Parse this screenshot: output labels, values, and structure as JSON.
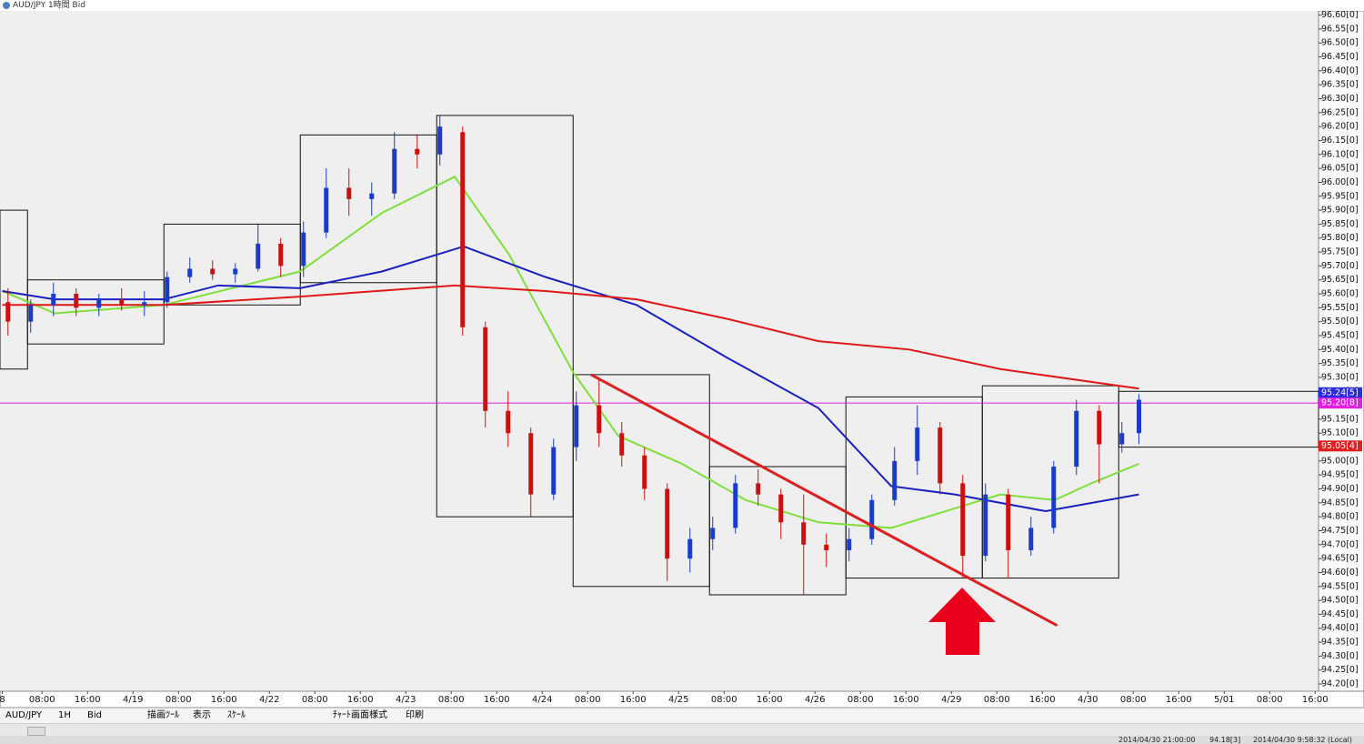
{
  "ui": {
    "window_title": "AUD/JPY 1時間 Bid",
    "toolbar": [
      "AUD/JPY",
      "1H",
      "Bid",
      "描画ﾂｰﾙ",
      "表示",
      "ｽｹｰﾙ",
      "ﾁｬｰﾄ画面様式",
      "印刷"
    ],
    "status": [
      "2014/04/30 21:00:00",
      "94.18[3]",
      "2014/04/30 9:58:32 (Local)"
    ]
  },
  "chart_data": {
    "type": "candlestick",
    "grid": false,
    "background": "#efefef",
    "xlim": [
      -7.4,
      224.6
    ],
    "ylim": [
      94.174,
      96.615
    ],
    "xticks": [
      {
        "value": -7,
        "label": "8"
      },
      {
        "value": 0,
        "label": "08:00"
      },
      {
        "value": 8,
        "label": "16:00"
      },
      {
        "value": 16,
        "label": "4/19"
      },
      {
        "value": 24,
        "label": "08:00"
      },
      {
        "value": 32,
        "label": "16:00"
      },
      {
        "value": 40,
        "label": "4/22"
      },
      {
        "value": 48,
        "label": "08:00"
      },
      {
        "value": 56,
        "label": "16:00"
      },
      {
        "value": 64,
        "label": "4/23"
      },
      {
        "value": 72,
        "label": "08:00"
      },
      {
        "value": 80,
        "label": "16:00"
      },
      {
        "value": 88,
        "label": "4/24"
      },
      {
        "value": 96,
        "label": "08:00"
      },
      {
        "value": 104,
        "label": "16:00"
      },
      {
        "value": 112,
        "label": "4/25"
      },
      {
        "value": 120,
        "label": "08:00"
      },
      {
        "value": 128,
        "label": "16:00"
      },
      {
        "value": 136,
        "label": "4/26"
      },
      {
        "value": 144,
        "label": "08:00"
      },
      {
        "value": 152,
        "label": "16:00"
      },
      {
        "value": 160,
        "label": "4/29"
      },
      {
        "value": 168,
        "label": "08:00"
      },
      {
        "value": 176,
        "label": "16:00"
      },
      {
        "value": 184,
        "label": "4/30"
      },
      {
        "value": 192,
        "label": "08:00"
      },
      {
        "value": 200,
        "label": "16:00"
      },
      {
        "value": 208,
        "label": "5/01"
      },
      {
        "value": 216,
        "label": "08:00"
      },
      {
        "value": 224,
        "label": "16:00"
      }
    ],
    "yticks": [
      {
        "value": 94.2,
        "label": "94.20[0]"
      },
      {
        "value": 94.25,
        "label": "94.25[0]"
      },
      {
        "value": 94.3,
        "label": "94.30[0]"
      },
      {
        "value": 94.35,
        "label": "94.35[0]"
      },
      {
        "value": 94.4,
        "label": "94.40[0]"
      },
      {
        "value": 94.45,
        "label": "94.45[0]"
      },
      {
        "value": 94.5,
        "label": "94.50[0]"
      },
      {
        "value": 94.55,
        "label": "94.55[0]"
      },
      {
        "value": 94.6,
        "label": "94.60[0]"
      },
      {
        "value": 94.65,
        "label": "94.65[0]"
      },
      {
        "value": 94.7,
        "label": "94.70[0]"
      },
      {
        "value": 94.75,
        "label": "94.75[0]"
      },
      {
        "value": 94.8,
        "label": "94.80[0]"
      },
      {
        "value": 94.85,
        "label": "94.85[0]"
      },
      {
        "value": 94.9,
        "label": "94.90[0]"
      },
      {
        "value": 94.95,
        "label": "94.95[0]"
      },
      {
        "value": 95.0,
        "label": "95.00[0]"
      },
      {
        "value": 95.05,
        "label": "95.05[0]"
      },
      {
        "value": 95.1,
        "label": "95.10[0]"
      },
      {
        "value": 95.15,
        "label": "95.15[0]"
      },
      {
        "value": 95.2,
        "label": "95.20[0]"
      },
      {
        "value": 95.25,
        "label": "95.25[0]"
      },
      {
        "value": 95.3,
        "label": "95.30[0]"
      },
      {
        "value": 95.35,
        "label": "95.35[0]"
      },
      {
        "value": 95.4,
        "label": "95.40[0]"
      },
      {
        "value": 95.45,
        "label": "95.45[0]"
      },
      {
        "value": 95.5,
        "label": "95.50[0]"
      },
      {
        "value": 95.55,
        "label": "95.55[0]"
      },
      {
        "value": 95.6,
        "label": "95.60[0]"
      },
      {
        "value": 95.65,
        "label": "95.65[0]"
      },
      {
        "value": 95.7,
        "label": "95.70[0]"
      },
      {
        "value": 95.75,
        "label": "95.75[0]"
      },
      {
        "value": 95.8,
        "label": "95.80[0]"
      },
      {
        "value": 95.85,
        "label": "95.85[0]"
      },
      {
        "value": 95.9,
        "label": "95.90[0]"
      },
      {
        "value": 95.95,
        "label": "95.95[0]"
      },
      {
        "value": 96.0,
        "label": "96.00[0]"
      },
      {
        "value": 96.05,
        "label": "96.05[0]"
      },
      {
        "value": 96.1,
        "label": "96.10[0]"
      },
      {
        "value": 96.15,
        "label": "96.15[0]"
      },
      {
        "value": 96.2,
        "label": "96.20[0]"
      },
      {
        "value": 96.25,
        "label": "96.25[0]"
      },
      {
        "value": 96.3,
        "label": "96.30[0]"
      },
      {
        "value": 96.35,
        "label": "96.35[0]"
      },
      {
        "value": 96.4,
        "label": "96.40[0]"
      },
      {
        "value": 96.45,
        "label": "96.45[0]"
      },
      {
        "value": 96.5,
        "label": "96.50[0]"
      },
      {
        "value": 96.55,
        "label": "96.55[0]"
      },
      {
        "value": 96.6,
        "label": "96.60[0]"
      }
    ],
    "up_color": "#1a3cc8",
    "down_color": "#cc1010",
    "candles": {
      "x": [
        -6,
        -2,
        2,
        6,
        10,
        14,
        18,
        22,
        26,
        30,
        34,
        38,
        42,
        46,
        50,
        54,
        58,
        62,
        66,
        70,
        74,
        78,
        82,
        86,
        90,
        94,
        98,
        102,
        106,
        110,
        114,
        118,
        122,
        126,
        130,
        134,
        138,
        142,
        146,
        150,
        154,
        158,
        162,
        166,
        170,
        174,
        178,
        182,
        186,
        190,
        193
      ],
      "open": [
        95.57,
        95.5,
        95.56,
        95.6,
        95.55,
        95.58,
        95.56,
        95.57,
        95.66,
        95.69,
        95.67,
        95.69,
        95.78,
        95.7,
        95.82,
        95.98,
        95.94,
        95.96,
        96.12,
        96.1,
        96.18,
        95.48,
        95.18,
        95.1,
        94.88,
        95.05,
        95.2,
        95.1,
        95.02,
        94.9,
        94.65,
        94.72,
        94.76,
        94.92,
        94.88,
        94.78,
        94.7,
        94.68,
        94.72,
        94.86,
        95.0,
        95.12,
        94.92,
        94.66,
        94.88,
        94.68,
        94.76,
        94.98,
        95.18,
        95.06,
        95.1
      ],
      "high": [
        95.62,
        95.58,
        95.64,
        95.62,
        95.6,
        95.62,
        95.61,
        95.68,
        95.73,
        95.72,
        95.71,
        95.85,
        95.8,
        95.86,
        96.05,
        96.05,
        96.0,
        96.18,
        96.17,
        96.24,
        96.2,
        95.5,
        95.25,
        95.12,
        95.08,
        95.25,
        95.3,
        95.14,
        95.05,
        94.92,
        94.76,
        94.8,
        94.95,
        94.97,
        94.9,
        94.88,
        94.74,
        94.76,
        94.88,
        95.05,
        95.2,
        95.14,
        94.95,
        94.92,
        94.9,
        94.8,
        95.0,
        95.22,
        95.2,
        95.14,
        95.24
      ],
      "low": [
        95.45,
        95.46,
        95.52,
        95.52,
        95.52,
        95.54,
        95.52,
        95.55,
        95.64,
        95.65,
        95.64,
        95.68,
        95.66,
        95.66,
        95.8,
        95.88,
        95.88,
        95.94,
        96.05,
        96.06,
        95.45,
        95.12,
        95.05,
        94.8,
        94.86,
        95.0,
        95.05,
        94.98,
        94.86,
        94.57,
        94.6,
        94.68,
        94.74,
        94.84,
        94.72,
        94.52,
        94.62,
        94.64,
        94.7,
        94.84,
        94.95,
        94.88,
        94.58,
        94.64,
        94.58,
        94.66,
        94.74,
        94.95,
        94.92,
        95.03,
        95.06
      ],
      "close": [
        95.5,
        95.56,
        95.6,
        95.55,
        95.58,
        95.56,
        95.57,
        95.66,
        95.69,
        95.67,
        95.69,
        95.78,
        95.7,
        95.82,
        95.98,
        95.94,
        95.96,
        96.12,
        96.1,
        96.2,
        95.48,
        95.18,
        95.1,
        94.88,
        95.05,
        95.2,
        95.1,
        95.02,
        94.9,
        94.65,
        94.72,
        94.76,
        94.92,
        94.88,
        94.78,
        94.7,
        94.68,
        94.72,
        94.86,
        95.0,
        95.12,
        94.92,
        94.66,
        94.88,
        94.68,
        94.76,
        94.98,
        95.18,
        95.06,
        95.1,
        95.22
      ]
    },
    "series": [
      {
        "color": "#7ee03a",
        "x": [
          -7,
          2.2,
          21.4,
          45.4,
          59.8,
          72.6,
          82.2,
          93.4,
          101.4,
          112.6,
          123.8,
          136.6,
          149.4,
          160.6,
          168.6,
          178.2,
          184.6,
          193
        ],
        "values": [
          95.61,
          95.53,
          95.56,
          95.68,
          95.89,
          96.02,
          95.74,
          95.32,
          95.09,
          94.99,
          94.86,
          94.78,
          94.76,
          94.83,
          94.88,
          94.86,
          94.92,
          94.99
        ]
      },
      {
        "color": "#1a20c0",
        "x": [
          -7,
          2.2,
          21.4,
          31,
          45.4,
          59.8,
          74.2,
          88.6,
          104.6,
          120.6,
          136.6,
          149.4,
          160.6,
          176.6,
          193
        ],
        "values": [
          95.61,
          95.58,
          95.58,
          95.63,
          95.62,
          95.68,
          95.77,
          95.66,
          95.56,
          95.37,
          95.19,
          94.91,
          94.88,
          94.82,
          94.88
        ]
      },
      {
        "color": "#e01818",
        "x": [
          -7,
          21.4,
          45.4,
          72.6,
          88.6,
          104.6,
          120.6,
          136.6,
          152.6,
          168.6,
          193
        ],
        "values": [
          95.56,
          95.56,
          95.59,
          95.63,
          95.61,
          95.58,
          95.51,
          95.43,
          95.4,
          95.33,
          95.26
        ]
      }
    ],
    "boxes": {
      "x0": [
        -7.4,
        -2.56,
        21.44,
        45.44,
        69.44,
        93.44,
        117.44,
        141.44,
        165.44,
        189.44
      ],
      "x1": [
        -2.56,
        21.44,
        45.44,
        69.44,
        93.44,
        117.44,
        141.44,
        165.44,
        189.44,
        224.6
      ],
      "high": [
        95.9,
        95.65,
        95.85,
        96.17,
        96.24,
        95.31,
        94.98,
        95.23,
        95.27,
        95.25
      ],
      "low": [
        95.33,
        95.42,
        95.56,
        95.64,
        94.8,
        94.55,
        94.52,
        94.58,
        94.58,
        95.05
      ]
    },
    "trendline": {
      "color": "#dd2020",
      "x": [
        96.6,
        178.6
      ],
      "values": [
        95.31,
        94.41
      ]
    },
    "price_lines": [
      {
        "value": 95.245,
        "label": "95.24[5]",
        "color": "#2a2ae0"
      },
      {
        "value": 95.208,
        "label": "95.20[8]",
        "color": "#e020e0",
        "line": true
      },
      {
        "value": 95.054,
        "label": "95.05[4]",
        "color": "#e02020"
      }
    ]
  }
}
